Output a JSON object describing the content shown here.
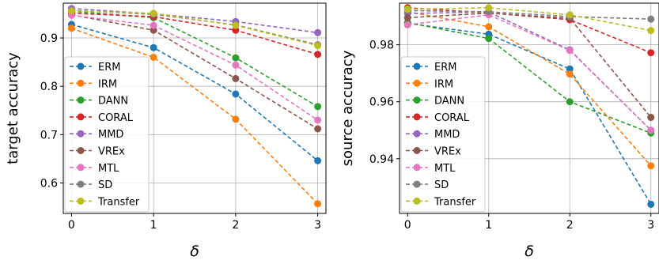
{
  "figure": {
    "background": "#ffffff",
    "grid_color": "#b0b0b0",
    "legend_border": "#cccccc"
  },
  "methods": [
    {
      "name": "ERM",
      "color": "#1f77b4"
    },
    {
      "name": "IRM",
      "color": "#ff7f0e"
    },
    {
      "name": "DANN",
      "color": "#2ca02c"
    },
    {
      "name": "CORAL",
      "color": "#d62728"
    },
    {
      "name": "MMD",
      "color": "#9467bd"
    },
    {
      "name": "VREx",
      "color": "#8c564b"
    },
    {
      "name": "MTL",
      "color": "#e377c2"
    },
    {
      "name": "SD",
      "color": "#7f7f7f"
    },
    {
      "name": "Transfer",
      "color": "#bcbd22"
    }
  ],
  "chart_data": [
    {
      "type": "line",
      "xlabel": "δ",
      "ylabel": "target accuracy",
      "x": [
        0,
        1,
        2,
        3
      ],
      "xticks": [
        "0",
        "1",
        "2",
        "3"
      ],
      "xlim": [
        -0.1,
        3.1
      ],
      "yticks": [
        "0.6",
        "0.7",
        "0.8",
        "0.9"
      ],
      "ylim": [
        0.537,
        0.972
      ],
      "grid": true,
      "legend": "lower-left",
      "series": [
        {
          "name": "ERM",
          "values": [
            0.928,
            0.88,
            0.784,
            0.646
          ]
        },
        {
          "name": "IRM",
          "values": [
            0.92,
            0.86,
            0.732,
            0.557
          ]
        },
        {
          "name": "DANN",
          "values": [
            0.955,
            0.942,
            0.859,
            0.758
          ]
        },
        {
          "name": "CORAL",
          "values": [
            0.951,
            0.944,
            0.916,
            0.866
          ]
        },
        {
          "name": "MMD",
          "values": [
            0.961,
            0.95,
            0.934,
            0.911
          ]
        },
        {
          "name": "VREx",
          "values": [
            0.948,
            0.916,
            0.816,
            0.712
          ]
        },
        {
          "name": "MTL",
          "values": [
            0.947,
            0.926,
            0.844,
            0.73
          ]
        },
        {
          "name": "SD",
          "values": [
            0.957,
            0.949,
            0.927,
            0.886
          ]
        },
        {
          "name": "Transfer",
          "values": [
            0.956,
            0.951,
            0.926,
            0.884
          ]
        }
      ]
    },
    {
      "type": "line",
      "xlabel": "δ",
      "ylabel": "source accuracy",
      "x": [
        0,
        1,
        2,
        3
      ],
      "xticks": [
        "0",
        "1",
        "2",
        "3"
      ],
      "xlim": [
        -0.1,
        3.1
      ],
      "yticks": [
        "0.94",
        "0.96",
        "0.98"
      ],
      "ylim": [
        0.9208,
        0.9946
      ],
      "grid": true,
      "legend": "lower-left",
      "series": [
        {
          "name": "ERM",
          "values": [
            0.9875,
            0.9837,
            0.9715,
            0.924
          ]
        },
        {
          "name": "IRM",
          "values": [
            0.9916,
            0.9863,
            0.9697,
            0.9375
          ]
        },
        {
          "name": "DANN",
          "values": [
            0.9878,
            0.9822,
            0.96,
            0.949
          ]
        },
        {
          "name": "CORAL",
          "values": [
            0.993,
            0.9912,
            0.9888,
            0.9772
          ]
        },
        {
          "name": "MMD",
          "values": [
            0.991,
            0.9915,
            0.9782,
            0.95
          ]
        },
        {
          "name": "VREx",
          "values": [
            0.9895,
            0.9911,
            0.9893,
            0.9545
          ]
        },
        {
          "name": "MTL",
          "values": [
            0.987,
            0.9905,
            0.978,
            0.95
          ]
        },
        {
          "name": "SD",
          "values": [
            0.992,
            0.9916,
            0.9899,
            0.989
          ]
        },
        {
          "name": "Transfer",
          "values": [
            0.9925,
            0.993,
            0.9905,
            0.985
          ]
        }
      ]
    }
  ]
}
